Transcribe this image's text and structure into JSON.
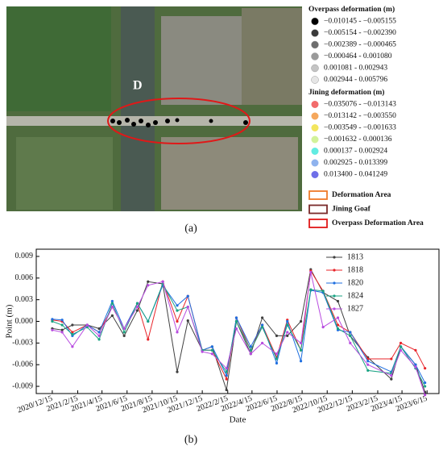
{
  "figure_a": {
    "label": "(a)",
    "map_label": "D",
    "legend": {
      "overpass_title": "Overpass deformation (m)",
      "overpass_classes": [
        {
          "label": "−0.010145 - −0.005155",
          "color": "#000000"
        },
        {
          "label": "−0.005154 - −0.002390",
          "color": "#3a3a3a"
        },
        {
          "label": "−0.002389 - −0.000465",
          "color": "#6e6e6e"
        },
        {
          "label": "−0.000464 - 0.001080",
          "color": "#9a9a9a"
        },
        {
          "label": "0.001081 - 0.002943",
          "color": "#c4c4c4"
        },
        {
          "label": "0.002944 - 0.005796",
          "color": "#e6e6e6"
        }
      ],
      "jining_title": "Jining deformation (m)",
      "jining_classes": [
        {
          "label": "−0.035076 - −0.013143",
          "color": "#f26b6b"
        },
        {
          "label": "−0.013142 - −0.003550",
          "color": "#f5a75c"
        },
        {
          "label": "−0.003549 - −0.001633",
          "color": "#f3e65e"
        },
        {
          "label": "−0.001632 - 0.000136",
          "color": "#d2f29a"
        },
        {
          "label": "0.000137 - 0.002924",
          "color": "#62ece2"
        },
        {
          "label": "0.002925 - 0.013399",
          "color": "#8fb3ee"
        },
        {
          "label": "0.013400 - 0.041249",
          "color": "#6f6fe8"
        }
      ],
      "areas": [
        {
          "label": "Deformation Area",
          "color": "#ee7a2a"
        },
        {
          "label": "Jining Goaf",
          "color": "#7a2a2a"
        },
        {
          "label": "Overpass Deformation Area",
          "color": "#e01818"
        }
      ]
    }
  },
  "figure_b_label": "(b)",
  "chart_data": {
    "type": "line",
    "x_label": "Date",
    "y_label": "Point (m)",
    "x": [
      "2020/12/15",
      "2021/1/8",
      "2021/2/2",
      "2021/3/10",
      "2021/4/8",
      "2021/5/10",
      "2021/6/8",
      "2021/7/10",
      "2021/8/5",
      "2021/9/10",
      "2021/10/15",
      "2021/11/10",
      "2021/12/15",
      "2022/1/8",
      "2022/2/12",
      "2022/3/8",
      "2022/4/12",
      "2022/5/10",
      "2022/6/14",
      "2022/7/10",
      "2022/8/12",
      "2022/9/5",
      "2022/10/5",
      "2022/11/10",
      "2022/12/10",
      "2023/1/22",
      "2023/3/20",
      "2023/4/12",
      "2023/5/18",
      "2023/6/10"
    ],
    "series": [
      {
        "name": "1813",
        "color": "#404040",
        "values": [
          -0.001,
          -0.0012,
          -0.0005,
          -0.0005,
          -0.001,
          0.0008,
          -0.002,
          0.0015,
          0.0055,
          0.0052,
          -0.007,
          0.0001,
          -0.004,
          -0.0035,
          -0.0095,
          0.0,
          -0.0045,
          0.0005,
          -0.002,
          -0.002,
          0.0,
          0.0072,
          0.004,
          0.0028,
          -0.002,
          -0.005,
          -0.008,
          -0.0035,
          -0.006,
          -0.0098
        ]
      },
      {
        "name": "1818",
        "color": "#e8242a",
        "values": [
          0.0002,
          0.0,
          -0.0015,
          -0.0005,
          -0.0015,
          0.002,
          -0.001,
          0.0025,
          -0.0025,
          0.0055,
          0.0,
          0.0035,
          -0.004,
          -0.004,
          -0.008,
          0.0005,
          -0.004,
          -0.0005,
          -0.005,
          0.0002,
          -0.004,
          0.007,
          0.0042,
          -0.0005,
          -0.0015,
          -0.0052,
          -0.0052,
          -0.003,
          -0.004,
          -0.0065
        ]
      },
      {
        "name": "1820",
        "color": "#1f6fe0",
        "values": [
          0.0003,
          0.0002,
          -0.002,
          -0.0005,
          -0.0015,
          0.0028,
          -0.001,
          0.0025,
          0.0,
          0.005,
          0.0022,
          0.0035,
          -0.004,
          -0.0035,
          -0.0075,
          0.0005,
          -0.0035,
          -0.0005,
          -0.0058,
          0.0,
          -0.0055,
          0.0043,
          0.004,
          -0.0012,
          -0.0015,
          -0.0055,
          -0.007,
          -0.0035,
          -0.006,
          -0.0085
        ]
      },
      {
        "name": "1824",
        "color": "#1aa383",
        "values": [
          0.0,
          -0.0005,
          -0.0018,
          -0.0008,
          -0.0025,
          0.0025,
          -0.0015,
          0.0025,
          0.0,
          0.0052,
          0.0015,
          0.002,
          -0.004,
          -0.004,
          -0.007,
          0.0,
          -0.004,
          -0.0008,
          -0.0052,
          -0.0005,
          -0.004,
          0.0044,
          0.0042,
          -0.001,
          -0.002,
          -0.0068,
          -0.0072,
          -0.0035,
          -0.0065,
          -0.009
        ]
      },
      {
        "name": "1827",
        "color": "#b84ce0",
        "values": [
          -0.0012,
          -0.0015,
          -0.0035,
          -0.0005,
          -0.002,
          0.002,
          -0.001,
          0.002,
          0.005,
          0.0055,
          -0.0015,
          0.002,
          -0.0042,
          -0.0045,
          -0.0065,
          -0.001,
          -0.0045,
          -0.003,
          -0.0045,
          -0.0015,
          -0.003,
          0.0068,
          -0.0008,
          0.0005,
          -0.003,
          -0.006,
          -0.0075,
          -0.004,
          -0.0063,
          -0.0102
        ]
      }
    ],
    "xlim": [
      "2020/11/6",
      "2023/7/14"
    ],
    "xticks": [
      "2020/12/15",
      "2021/2/15",
      "2021/4/15",
      "2021/6/15",
      "2021/8/15",
      "2021/10/15",
      "2021/12/15",
      "2022/2/15",
      "2022/4/15",
      "2022/6/15",
      "2022/8/15",
      "2022/10/15",
      "2022/12/15",
      "2023/2/15",
      "2023/4/15",
      "2023/6/15"
    ],
    "ylim": [
      -0.01,
      0.01
    ],
    "yticks": [
      0.009,
      0.006,
      0.003,
      {
        "value": 0,
        "label": "0.000"
      },
      -0.003,
      -0.006,
      -0.009
    ],
    "legend": "upper right"
  }
}
